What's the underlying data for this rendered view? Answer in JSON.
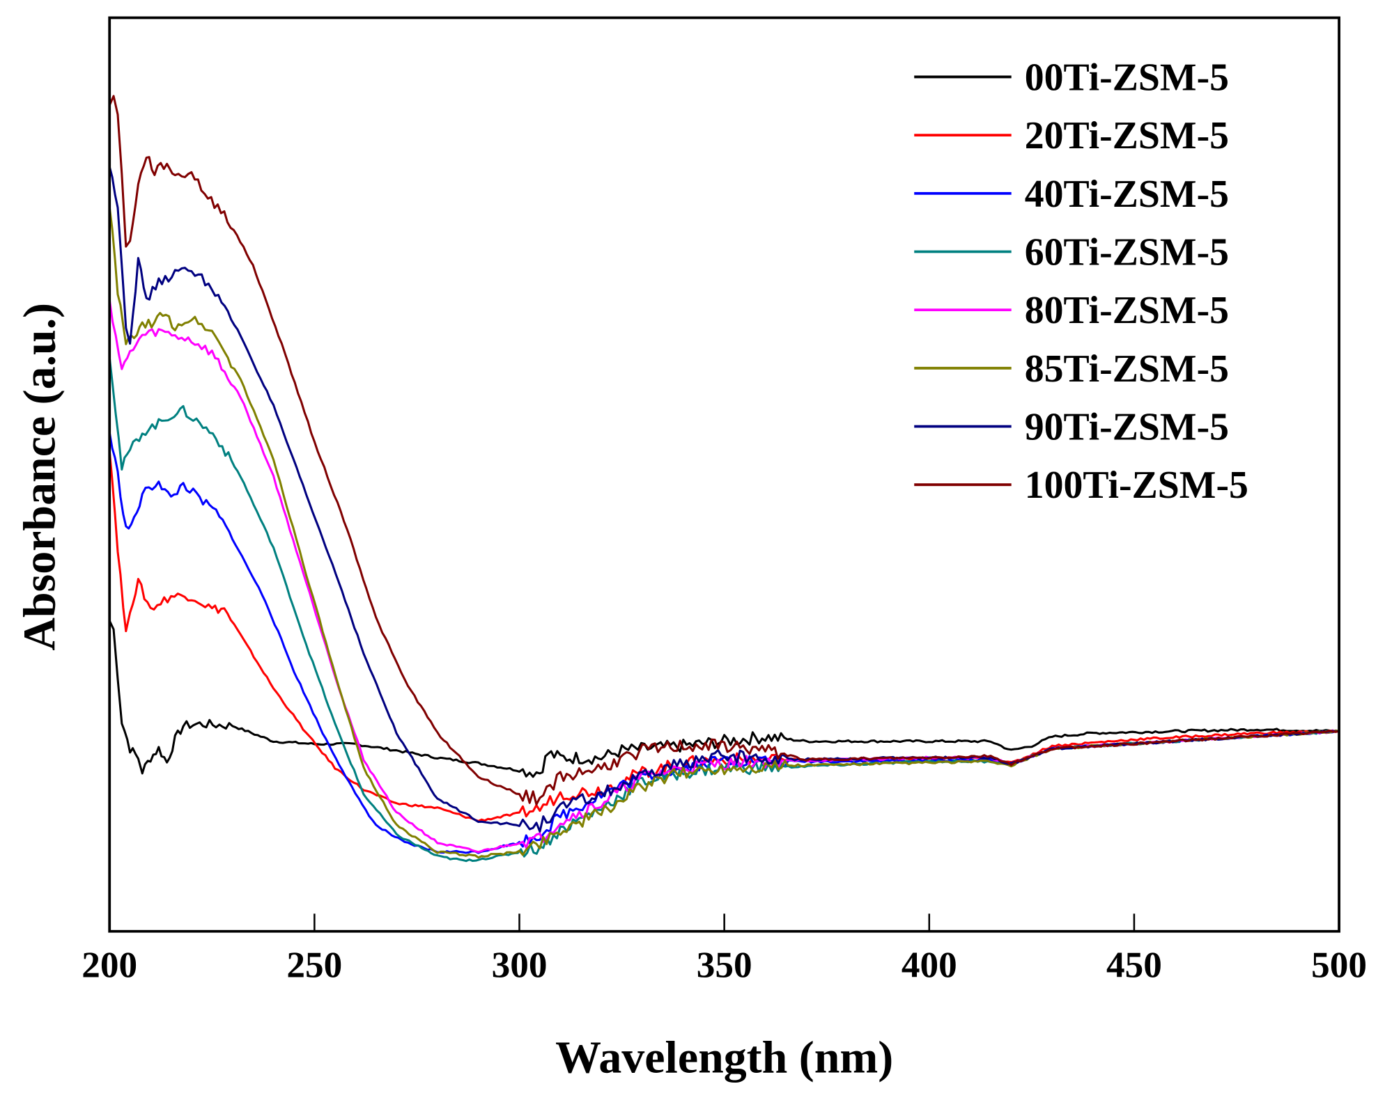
{
  "chart_data": {
    "type": "line",
    "title": "",
    "xlabel": "Wavelength (nm)",
    "ylabel": "Absorbance (a.u.)",
    "xlim": [
      200,
      500
    ],
    "ylim": [
      0,
      100
    ],
    "xticks": [
      200,
      250,
      300,
      350,
      400,
      450,
      500
    ],
    "xtick_labels": [
      "200",
      "250",
      "300",
      "350",
      "400",
      "450",
      "500"
    ],
    "yticks_shown": false,
    "grid": false,
    "legend_position": "top-right",
    "series": [
      {
        "name": "00Ti-ZSM-5",
        "color": "#000000",
        "points": [
          [
            200,
            34
          ],
          [
            201,
            33
          ],
          [
            202,
            28
          ],
          [
            203,
            23
          ],
          [
            205,
            20
          ],
          [
            207,
            19
          ],
          [
            208,
            17.5
          ],
          [
            210,
            19
          ],
          [
            212,
            20
          ],
          [
            214,
            18.5
          ],
          [
            216,
            21
          ],
          [
            218,
            22.5
          ],
          [
            222,
            22.7
          ],
          [
            230,
            22.5
          ],
          [
            240,
            20.8
          ],
          [
            250,
            20.5
          ],
          [
            260,
            20.5
          ],
          [
            270,
            19.8
          ],
          [
            280,
            19
          ],
          [
            290,
            18.4
          ],
          [
            300,
            17.6
          ],
          [
            305,
            17.4
          ],
          [
            307,
            19.5
          ],
          [
            310,
            19
          ],
          [
            320,
            19
          ],
          [
            325,
            19.8
          ],
          [
            340,
            20.3
          ],
          [
            350,
            20.8
          ],
          [
            360,
            21.3
          ],
          [
            370,
            20.8
          ],
          [
            400,
            20.8
          ],
          [
            415,
            20.8
          ],
          [
            420,
            19.8
          ],
          [
            425,
            20.3
          ],
          [
            430,
            21.3
          ],
          [
            440,
            21.7
          ],
          [
            460,
            21.9
          ],
          [
            480,
            22.1
          ],
          [
            500,
            21.9
          ]
        ]
      },
      {
        "name": "20Ti-ZSM-5",
        "color": "#ff0000",
        "points": [
          [
            200,
            53.1
          ],
          [
            202,
            42
          ],
          [
            204,
            32.4
          ],
          [
            205,
            35.3
          ],
          [
            207,
            38.2
          ],
          [
            210,
            35.3
          ],
          [
            215,
            36.7
          ],
          [
            220,
            36.7
          ],
          [
            225,
            35.3
          ],
          [
            228,
            35.3
          ],
          [
            232,
            32.4
          ],
          [
            240,
            26.6
          ],
          [
            248,
            21.7
          ],
          [
            255,
            17.9
          ],
          [
            262,
            15.5
          ],
          [
            270,
            14
          ],
          [
            280,
            13.5
          ],
          [
            290,
            12.1
          ],
          [
            300,
            12.9
          ],
          [
            305,
            13.5
          ],
          [
            310,
            15
          ],
          [
            320,
            15.5
          ],
          [
            330,
            17.4
          ],
          [
            340,
            18.4
          ],
          [
            350,
            18.8
          ],
          [
            360,
            18.8
          ],
          [
            380,
            18.8
          ],
          [
            415,
            19
          ],
          [
            420,
            18.4
          ],
          [
            430,
            20.3
          ],
          [
            450,
            21
          ],
          [
            480,
            21.7
          ],
          [
            500,
            21.9
          ]
        ]
      },
      {
        "name": "40Ti-ZSM-5",
        "color": "#0000ff",
        "points": [
          [
            200,
            54.6
          ],
          [
            202,
            50
          ],
          [
            204,
            44
          ],
          [
            206,
            44.9
          ],
          [
            208,
            47.8
          ],
          [
            212,
            49.3
          ],
          [
            215,
            47.3
          ],
          [
            218,
            49
          ],
          [
            222,
            47.3
          ],
          [
            226,
            45.9
          ],
          [
            230,
            43
          ],
          [
            238,
            36.2
          ],
          [
            245,
            28.5
          ],
          [
            252,
            21.7
          ],
          [
            260,
            15
          ],
          [
            265,
            11.6
          ],
          [
            272,
            9.7
          ],
          [
            280,
            8.7
          ],
          [
            290,
            8.7
          ],
          [
            300,
            9.7
          ],
          [
            305,
            10.6
          ],
          [
            310,
            12.6
          ],
          [
            320,
            15
          ],
          [
            330,
            16.9
          ],
          [
            340,
            17.9
          ],
          [
            350,
            18.8
          ],
          [
            360,
            18.6
          ],
          [
            380,
            18.6
          ],
          [
            415,
            18.8
          ],
          [
            420,
            18.3
          ],
          [
            430,
            20
          ],
          [
            500,
            21.9
          ]
        ]
      },
      {
        "name": "60Ti-ZSM-5",
        "color": "#008080",
        "points": [
          [
            200,
            63.3
          ],
          [
            203,
            50.7
          ],
          [
            205,
            52.7
          ],
          [
            208,
            54.6
          ],
          [
            212,
            55.6
          ],
          [
            215,
            56.5
          ],
          [
            218,
            57
          ],
          [
            222,
            55.6
          ],
          [
            226,
            54.1
          ],
          [
            232,
            49.8
          ],
          [
            240,
            42
          ],
          [
            248,
            31.4
          ],
          [
            255,
            22.7
          ],
          [
            262,
            15
          ],
          [
            270,
            10.6
          ],
          [
            280,
            8.2
          ],
          [
            287,
            7.7
          ],
          [
            295,
            8.2
          ],
          [
            305,
            9.2
          ],
          [
            310,
            11.1
          ],
          [
            320,
            13.5
          ],
          [
            330,
            16.4
          ],
          [
            340,
            17.4
          ],
          [
            350,
            17.9
          ],
          [
            360,
            17.9
          ],
          [
            400,
            18.6
          ],
          [
            415,
            18.6
          ],
          [
            420,
            18.3
          ],
          [
            430,
            20
          ],
          [
            500,
            21.9
          ]
        ]
      },
      {
        "name": "80Ti-ZSM-5",
        "color": "#ff00ff",
        "points": [
          [
            200,
            69.1
          ],
          [
            203,
            61.4
          ],
          [
            205,
            63.3
          ],
          [
            208,
            65.2
          ],
          [
            212,
            65.7
          ],
          [
            216,
            65.2
          ],
          [
            220,
            64.7
          ],
          [
            225,
            63.3
          ],
          [
            232,
            58.5
          ],
          [
            240,
            49.8
          ],
          [
            248,
            38.2
          ],
          [
            256,
            26.6
          ],
          [
            262,
            18.8
          ],
          [
            270,
            13
          ],
          [
            280,
            9.7
          ],
          [
            290,
            8.7
          ],
          [
            300,
            9.7
          ],
          [
            305,
            10.1
          ],
          [
            310,
            12.1
          ],
          [
            320,
            14
          ],
          [
            330,
            16.9
          ],
          [
            340,
            17.9
          ],
          [
            350,
            18.4
          ],
          [
            360,
            18.6
          ],
          [
            400,
            19
          ],
          [
            415,
            19
          ],
          [
            420,
            18.3
          ],
          [
            430,
            20
          ],
          [
            500,
            21.9
          ]
        ]
      },
      {
        "name": "85Ti-ZSM-5",
        "color": "#808000",
        "points": [
          [
            200,
            79.7
          ],
          [
            202,
            70
          ],
          [
            204,
            64.3
          ],
          [
            206,
            65.2
          ],
          [
            208,
            66.2
          ],
          [
            211,
            66.7
          ],
          [
            213,
            67.6
          ],
          [
            216,
            66.2
          ],
          [
            220,
            67.1
          ],
          [
            225,
            65.7
          ],
          [
            232,
            60.4
          ],
          [
            240,
            51.7
          ],
          [
            248,
            39.1
          ],
          [
            256,
            26.6
          ],
          [
            262,
            17.9
          ],
          [
            270,
            11.6
          ],
          [
            280,
            8.7
          ],
          [
            290,
            8.2
          ],
          [
            300,
            8.7
          ],
          [
            305,
            9.7
          ],
          [
            310,
            11.1
          ],
          [
            320,
            13
          ],
          [
            330,
            15.9
          ],
          [
            340,
            17.4
          ],
          [
            350,
            17.9
          ],
          [
            360,
            18.1
          ],
          [
            415,
            18.6
          ],
          [
            420,
            18.1
          ],
          [
            430,
            20
          ],
          [
            500,
            21.9
          ]
        ]
      },
      {
        "name": "90Ti-ZSM-5",
        "color": "#000080",
        "points": [
          [
            200,
            83.6
          ],
          [
            202,
            79.7
          ],
          [
            204,
            66.2
          ],
          [
            205,
            64.7
          ],
          [
            207,
            73.4
          ],
          [
            209,
            69.1
          ],
          [
            212,
            71
          ],
          [
            216,
            72
          ],
          [
            220,
            72.5
          ],
          [
            225,
            70.5
          ],
          [
            232,
            65.2
          ],
          [
            240,
            57.5
          ],
          [
            248,
            47.8
          ],
          [
            256,
            38.2
          ],
          [
            262,
            30.4
          ],
          [
            270,
            21.7
          ],
          [
            280,
            14.5
          ],
          [
            290,
            12.1
          ],
          [
            300,
            11.6
          ],
          [
            305,
            11.6
          ],
          [
            310,
            13.5
          ],
          [
            320,
            15
          ],
          [
            330,
            16.9
          ],
          [
            340,
            18.4
          ],
          [
            350,
            19.3
          ],
          [
            360,
            18.8
          ],
          [
            400,
            19
          ],
          [
            415,
            19
          ],
          [
            420,
            18.3
          ],
          [
            430,
            20
          ],
          [
            500,
            21.9
          ]
        ]
      },
      {
        "name": "100Ti-ZSM-5",
        "color": "#800000",
        "points": [
          [
            200,
            90.8
          ],
          [
            201,
            91.3
          ],
          [
            202,
            89.4
          ],
          [
            203,
            82.6
          ],
          [
            204,
            74.9
          ],
          [
            205,
            75.8
          ],
          [
            207,
            81.6
          ],
          [
            209,
            85
          ],
          [
            211,
            83.1
          ],
          [
            214,
            84.1
          ],
          [
            216,
            82.6
          ],
          [
            220,
            83.1
          ],
          [
            224,
            80.2
          ],
          [
            228,
            78.7
          ],
          [
            235,
            72.9
          ],
          [
            242,
            64.3
          ],
          [
            250,
            53.6
          ],
          [
            258,
            44
          ],
          [
            265,
            34.3
          ],
          [
            272,
            27.5
          ],
          [
            280,
            21.7
          ],
          [
            290,
            16.9
          ],
          [
            300,
            15
          ],
          [
            305,
            14.5
          ],
          [
            310,
            16.9
          ],
          [
            320,
            17.9
          ],
          [
            330,
            19.8
          ],
          [
            340,
            20.3
          ],
          [
            350,
            20.3
          ],
          [
            360,
            19.8
          ],
          [
            370,
            18.8
          ],
          [
            400,
            19
          ],
          [
            415,
            19.2
          ],
          [
            420,
            18.3
          ],
          [
            430,
            20
          ],
          [
            500,
            21.9
          ]
        ]
      }
    ]
  }
}
